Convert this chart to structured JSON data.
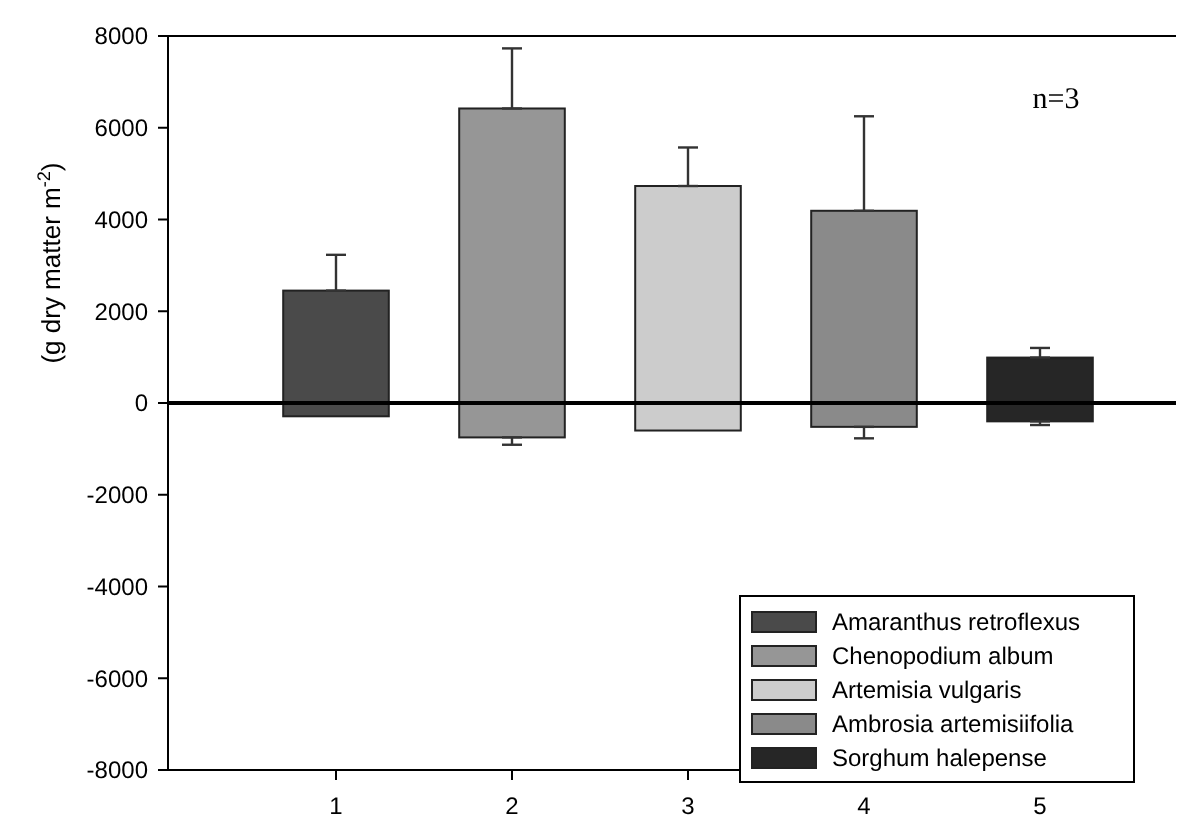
{
  "chart_data": {
    "type": "bar",
    "ylabel": "(g dry matter m$^{-2}$)",
    "categories": [
      "1",
      "2",
      "3",
      "4",
      "5"
    ],
    "stacked": true,
    "series": [
      {
        "name": "Amaranthus retroflexus",
        "color": "#4a4a4a",
        "values": [
          2450,
          null,
          null,
          null,
          null
        ],
        "errors": [
          [
            2450,
            3230
          ],
          null,
          null,
          null,
          null
        ]
      },
      {
        "name": "Chenopodium album",
        "color": "#969696",
        "values": [
          null,
          6420,
          null,
          null,
          null
        ],
        "errors": [
          null,
          [
            6420,
            7730
          ],
          null,
          null,
          null
        ]
      },
      {
        "name": "Artemisia vulgaris",
        "color": "#cccccc",
        "values": [
          null,
          null,
          4730,
          null,
          null
        ],
        "errors": [
          null,
          null,
          [
            4730,
            5570
          ],
          null,
          null
        ]
      },
      {
        "name": "Ambrosia artemisiifolia",
        "color": "#8a8a8a",
        "values": [
          null,
          null,
          null,
          4190,
          null
        ],
        "errors": [
          null,
          null,
          null,
          [
            4190,
            6250
          ],
          null
        ]
      },
      {
        "name": "Sorghum halepense",
        "color": "#262626",
        "values": [
          null,
          null,
          null,
          null,
          990
        ],
        "errors": [
          null,
          null,
          null,
          null,
          [
            990,
            1200
          ]
        ]
      },
      {
        "color": "#4a4a4a",
        "values": [
          -290,
          null,
          null,
          null,
          null
        ]
      },
      {
        "color": "#969696",
        "values": [
          null,
          -750,
          null,
          null,
          null
        ],
        "errors": [
          null,
          [
            -910,
            -750
          ],
          null,
          null,
          null
        ]
      },
      {
        "color": "#cccccc",
        "values": [
          null,
          null,
          -600,
          null,
          null
        ]
      },
      {
        "color": "#8a8a8a",
        "values": [
          null,
          null,
          null,
          -520,
          null
        ],
        "errors": [
          null,
          null,
          null,
          [
            -770,
            -520
          ],
          null
        ]
      },
      {
        "color": "#262626",
        "values": [
          null,
          null,
          null,
          null,
          -400
        ],
        "errors": [
          null,
          null,
          null,
          null,
          [
            -480,
            -400
          ]
        ]
      }
    ],
    "ylim": [
      -8000,
      8000
    ],
    "yticks": [
      -8000,
      -6000,
      -4000,
      -2000,
      0,
      2000,
      4000,
      6000,
      8000
    ],
    "ref_lines": [
      {
        "axis": "y",
        "value": 0
      }
    ],
    "annotations": [
      "n=3"
    ],
    "legend": "bottom right",
    "grid": false
  }
}
